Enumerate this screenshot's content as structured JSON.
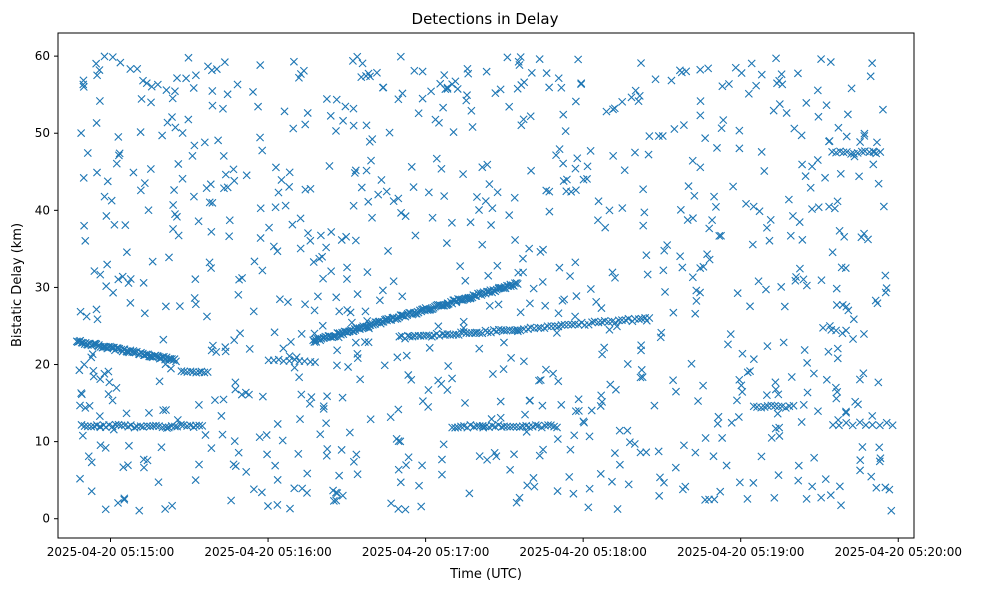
{
  "chart_data": {
    "type": "scatter",
    "title": "Detections in Delay",
    "xlabel": "Time (UTC)",
    "ylabel": "Bistatic Delay (km)",
    "x_unit": "time",
    "xlim": [
      "2025-04-20 05:14:40",
      "2025-04-20 05:20:06"
    ],
    "ylim": [
      -2.5,
      63
    ],
    "xticks": [
      {
        "t": "2025-04-20 05:15:00",
        "label": "2025-04-20 05:15:00"
      },
      {
        "t": "2025-04-20 05:16:00",
        "label": "2025-04-20 05:16:00"
      },
      {
        "t": "2025-04-20 05:17:00",
        "label": "2025-04-20 05:17:00"
      },
      {
        "t": "2025-04-20 05:18:00",
        "label": "2025-04-20 05:18:00"
      },
      {
        "t": "2025-04-20 05:19:00",
        "label": "2025-04-20 05:19:00"
      },
      {
        "t": "2025-04-20 05:20:00",
        "label": "2025-04-20 05:20:00"
      }
    ],
    "yticks": [
      0,
      10,
      20,
      30,
      40,
      50,
      60
    ],
    "marker": "x",
    "color": "#1f77b4",
    "grid": false,
    "series": [
      {
        "tracks": [
          {
            "t0": "2025-04-20 05:14:47",
            "t1": "2025-04-20 05:15:25",
            "y0": 23.0,
            "y1": 20.5,
            "n": 75
          },
          {
            "t0": "2025-04-20 05:15:27",
            "t1": "2025-04-20 05:15:37",
            "y0": 19.0,
            "y1": 19.0,
            "n": 10
          },
          {
            "t0": "2025-04-20 05:16:17",
            "t1": "2025-04-20 05:17:35",
            "y0": 23.0,
            "y1": 30.5,
            "n": 160
          },
          {
            "t0": "2025-04-20 05:16:50",
            "t1": "2025-04-20 05:17:35",
            "y0": 23.5,
            "y1": 24.5,
            "n": 45
          },
          {
            "t0": "2025-04-20 05:17:35",
            "t1": "2025-04-20 05:18:25",
            "y0": 24.5,
            "y1": 26.0,
            "n": 40
          },
          {
            "t0": "2025-04-20 05:14:49",
            "t1": "2025-04-20 05:15:35",
            "y0": 12.0,
            "y1": 12.0,
            "n": 40
          },
          {
            "t0": "2025-04-20 05:17:10",
            "t1": "2025-04-20 05:17:50",
            "y0": 12.0,
            "y1": 12.0,
            "n": 35
          },
          {
            "t0": "2025-04-20 05:16:00",
            "t1": "2025-04-20 05:16:18",
            "y0": 20.5,
            "y1": 20.5,
            "n": 10
          },
          {
            "t0": "2025-04-20 05:19:05",
            "t1": "2025-04-20 05:19:20",
            "y0": 14.5,
            "y1": 14.5,
            "n": 12
          },
          {
            "t0": "2025-04-20 05:19:35",
            "t1": "2025-04-20 05:19:53",
            "y0": 47.5,
            "y1": 47.5,
            "n": 14
          },
          {
            "t0": "2025-04-20 05:19:35",
            "t1": "2025-04-20 05:19:58",
            "y0": 12.3,
            "y1": 12.3,
            "n": 10
          }
        ],
        "noise": {
          "t0": "2025-04-20 05:14:47",
          "t1": "2025-04-20 05:19:58",
          "y0": 1,
          "y1": 60,
          "n": 900
        }
      }
    ]
  }
}
